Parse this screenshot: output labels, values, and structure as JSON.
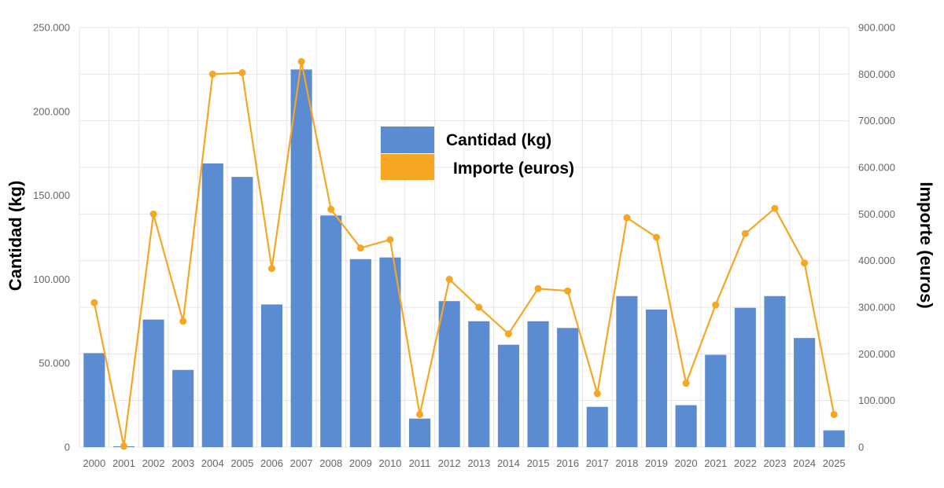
{
  "chart_data": {
    "type": "bar",
    "categories": [
      "2000",
      "2001",
      "2002",
      "2003",
      "2004",
      "2005",
      "2006",
      "2007",
      "2008",
      "2009",
      "2010",
      "2011",
      "2012",
      "2013",
      "2014",
      "2015",
      "2016",
      "2017",
      "2018",
      "2019",
      "2020",
      "2021",
      "2022",
      "2023",
      "2024",
      "2025"
    ],
    "series": [
      {
        "name": "Cantidad (kg)",
        "type": "bar",
        "axis": "left",
        "color": "#5b8bd0",
        "values": [
          56000,
          500,
          76000,
          46000,
          169000,
          161000,
          85000,
          225000,
          138000,
          112000,
          113000,
          17000,
          87000,
          75000,
          61000,
          75000,
          71000,
          24000,
          90000,
          82000,
          25000,
          55000,
          83000,
          90000,
          65000,
          10000
        ]
      },
      {
        "name": "Importe (euros)",
        "type": "line",
        "axis": "right",
        "color": "#f5a623",
        "values": [
          310000,
          2000,
          500000,
          270000,
          800000,
          803000,
          383000,
          827000,
          510000,
          427000,
          445000,
          70000,
          360000,
          300000,
          243000,
          340000,
          335000,
          115000,
          492000,
          450000,
          137000,
          305000,
          458000,
          512000,
          395000,
          70000
        ]
      }
    ],
    "ylabel": "Cantidad (kg)",
    "y2label": "Importe (euros)",
    "ylim": [
      0,
      250000
    ],
    "y2lim": [
      0,
      900000
    ],
    "yticks": [
      {
        "value": 0,
        "label": "0"
      },
      {
        "value": 50000,
        "label": "50.000"
      },
      {
        "value": 100000,
        "label": "100.000"
      },
      {
        "value": 150000,
        "label": "150.000"
      },
      {
        "value": 200000,
        "label": "200.000"
      },
      {
        "value": 250000,
        "label": "250.000"
      }
    ],
    "y2ticks": [
      {
        "value": 0,
        "label": "0"
      },
      {
        "value": 100000,
        "label": "100.000"
      },
      {
        "value": 200000,
        "label": "200.000"
      },
      {
        "value": 300000,
        "label": "300.000"
      },
      {
        "value": 400000,
        "label": "400.000"
      },
      {
        "value": 500000,
        "label": "500.000"
      },
      {
        "value": 600000,
        "label": "600.000"
      },
      {
        "value": 700000,
        "label": "700.000"
      },
      {
        "value": 800000,
        "label": "800.000"
      },
      {
        "value": 900000,
        "label": "900.000"
      }
    ],
    "grid": true,
    "legend": "top-center"
  }
}
